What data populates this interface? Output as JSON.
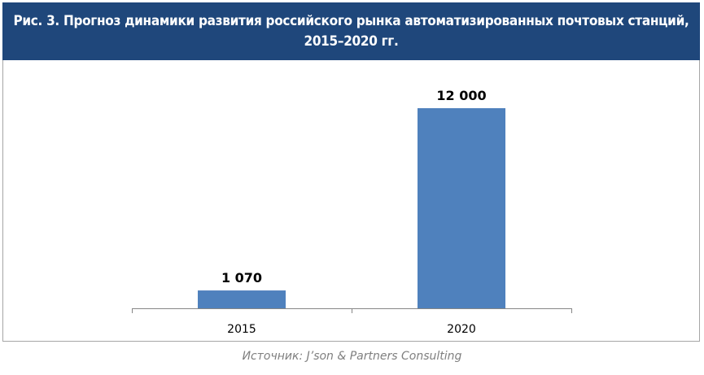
{
  "chart_data": {
    "type": "bar",
    "title": "Рис. 3. Прогноз динамики развития российского рынка автоматизированных почтовых станций, 2015–2020 гг.",
    "categories": [
      "2015",
      "2020"
    ],
    "values": [
      1070,
      12000
    ],
    "data_labels": [
      "1 070",
      "12 000"
    ],
    "xlabel": "",
    "ylabel": "",
    "ylim": [
      0,
      12000
    ],
    "grid": false,
    "bar_color": "#4f81bd",
    "source": "Источник: J’son & Partners Consulting"
  }
}
